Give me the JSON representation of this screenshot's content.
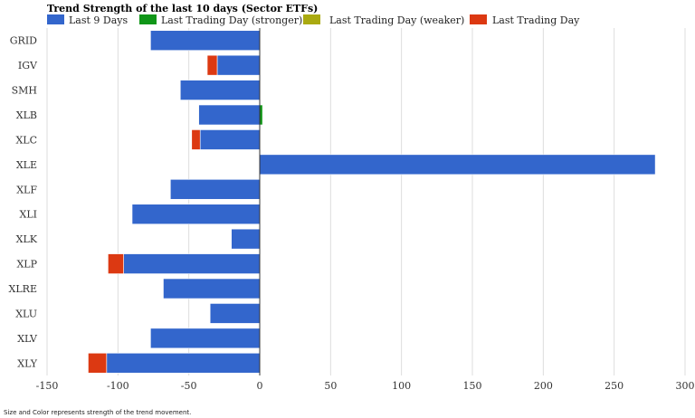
{
  "chart_data": {
    "type": "bar",
    "orientation": "horizontal",
    "stacked": true,
    "title": "Trend Strength of the last 10 days (Sector ETFs)",
    "footnote": "Size and Color represents strength of the trend movement.",
    "xlim": [
      -150,
      300
    ],
    "xticks": [
      -150,
      -100,
      -50,
      0,
      50,
      100,
      150,
      200,
      250,
      300
    ],
    "grid": true,
    "legend_position": "top-left",
    "categories": [
      "GRID",
      "IGV",
      "SMH",
      "XLB",
      "XLC",
      "XLE",
      "XLF",
      "XLI",
      "XLK",
      "XLP",
      "XLRE",
      "XLU",
      "XLV",
      "XLY"
    ],
    "series": [
      {
        "name": "Last 9 Days",
        "color": "#3366cc",
        "values": [
          -77,
          -30,
          -56,
          -43,
          -42,
          279,
          -63,
          -90,
          -20,
          -96,
          -68,
          -35,
          -77,
          -108
        ]
      },
      {
        "name": "Last Trading Day (stronger)",
        "color": "#109618",
        "values": [
          0,
          0,
          0,
          2,
          0,
          0,
          0,
          0,
          0,
          0,
          0,
          0,
          0,
          0
        ]
      },
      {
        "name": "Last Trading Day (weaker)",
        "color": "#aaaa11",
        "values": [
          0,
          0,
          0,
          0,
          0,
          0,
          0,
          0,
          0,
          0,
          0,
          0,
          0,
          0
        ]
      },
      {
        "name": "Last Trading Day",
        "color": "#dc3912",
        "values": [
          0,
          -7,
          0,
          0,
          -6,
          0,
          0,
          0,
          0,
          -11,
          0,
          0,
          0,
          -13
        ]
      }
    ]
  }
}
